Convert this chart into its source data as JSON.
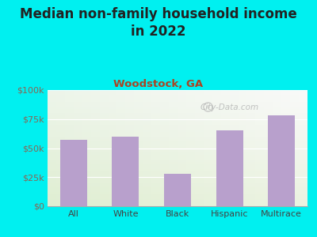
{
  "title": "Median non-family household income\nin 2022",
  "subtitle": "Woodstock, GA",
  "categories": [
    "All",
    "White",
    "Black",
    "Hispanic",
    "Multirace"
  ],
  "values": [
    57000,
    60000,
    28000,
    65000,
    78000
  ],
  "bar_color": "#b8a0cc",
  "background_outer": "#00f0f0",
  "background_inner": "#e8f5e0",
  "title_fontsize": 12,
  "subtitle_fontsize": 9.5,
  "subtitle_color": "#aa4422",
  "title_color": "#222222",
  "tick_color": "#886655",
  "yticks": [
    0,
    25000,
    50000,
    75000,
    100000
  ],
  "ylim": [
    0,
    100000
  ],
  "watermark": "City-Data.com"
}
